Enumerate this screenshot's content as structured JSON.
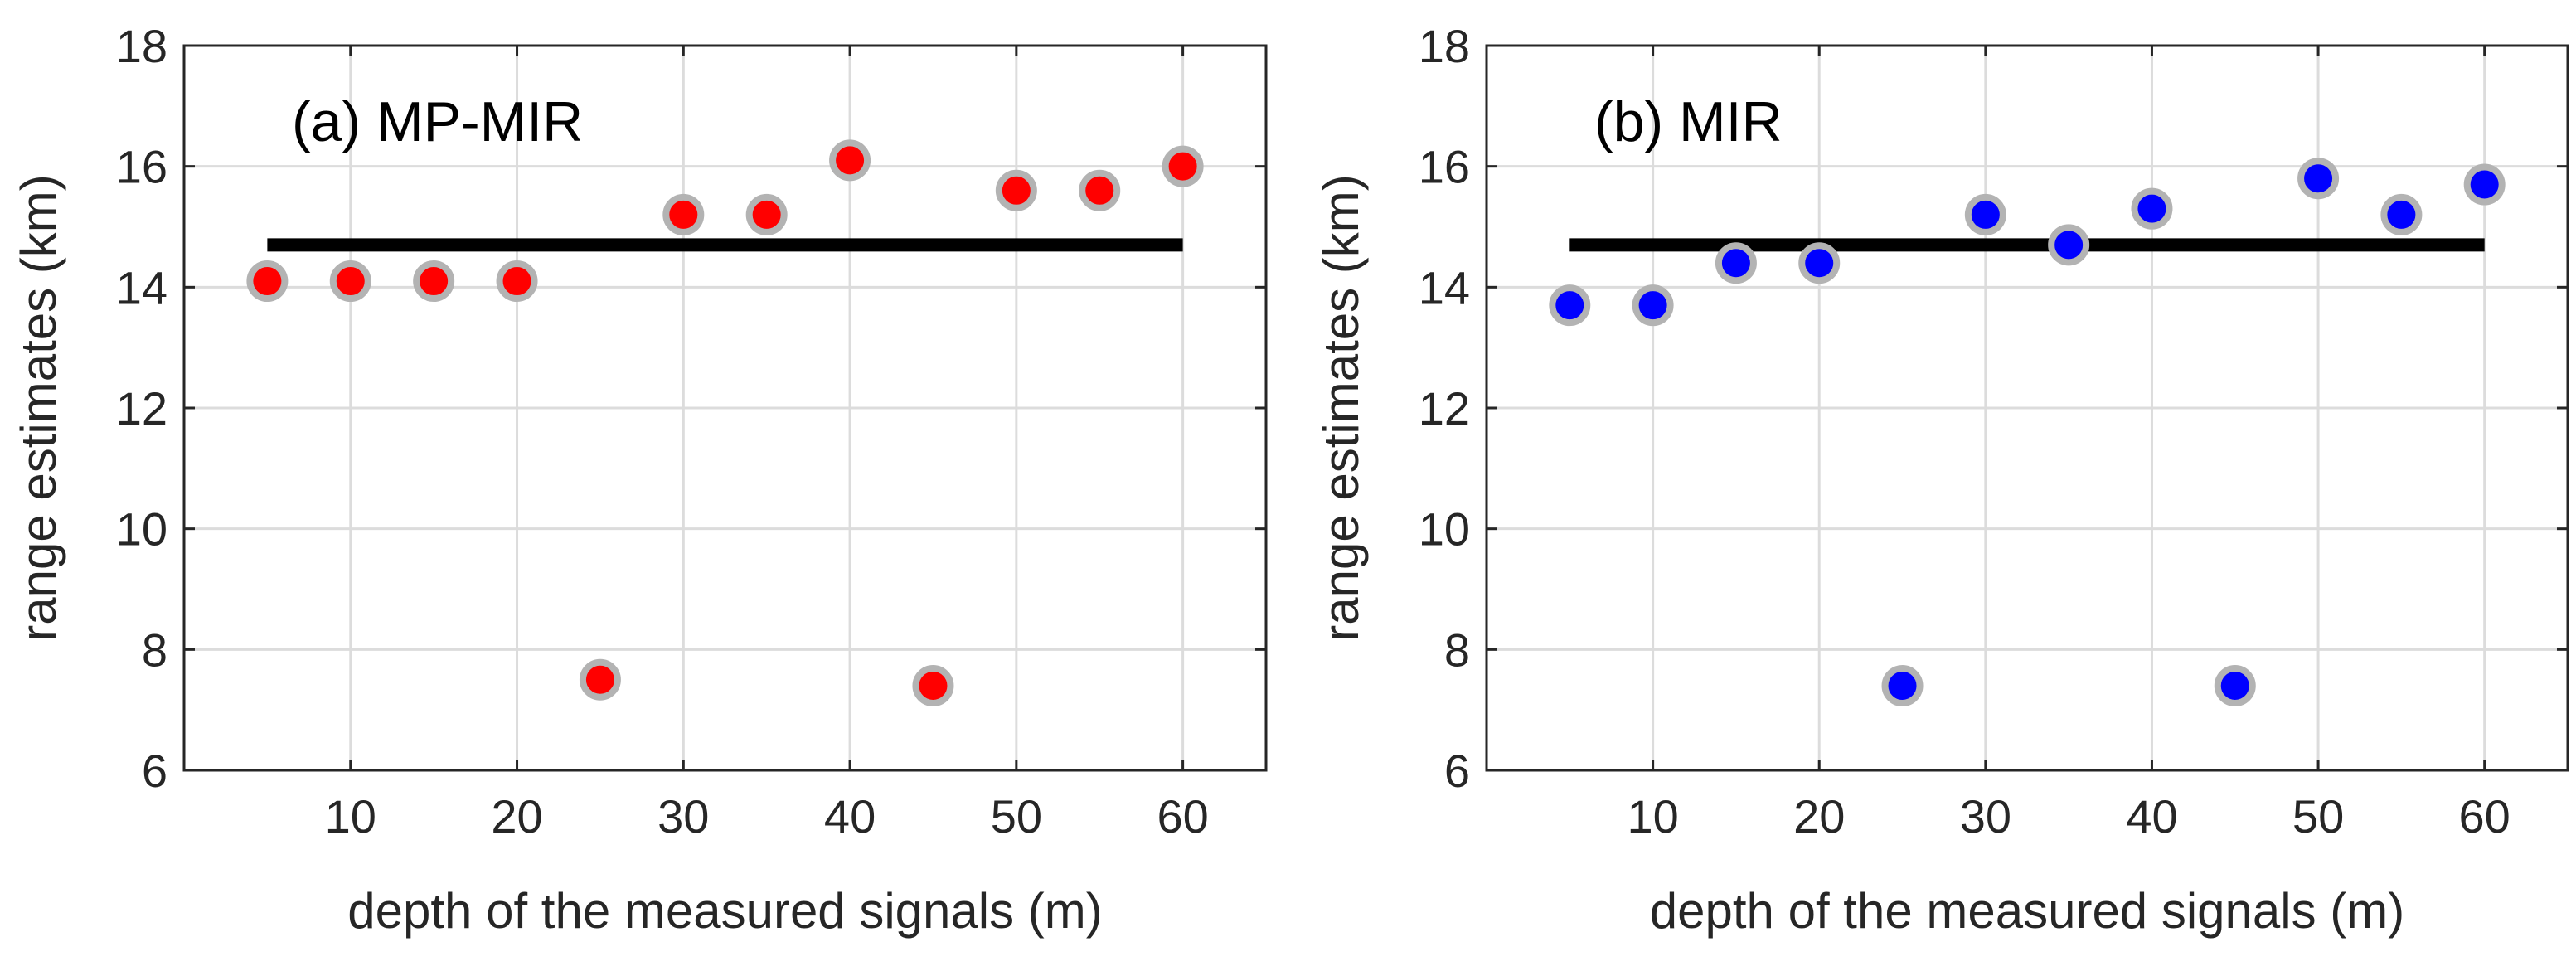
{
  "chart_data": [
    {
      "type": "scatter",
      "title": "(a) MP-MIR",
      "xlabel": "depth of the measured signals (m)",
      "ylabel": "range estimates (km)",
      "xlim": [
        0,
        65
      ],
      "ylim": [
        6,
        18
      ],
      "xticks": [
        "10",
        "20",
        "30",
        "40",
        "50",
        "60"
      ],
      "yticks": [
        "6",
        "8",
        "10",
        "12",
        "14",
        "16",
        "18"
      ],
      "grid": true,
      "marker_color": "#ff0000",
      "marker_edge": "#b3b3b3",
      "reference_line": {
        "y": 14.7,
        "x": [
          5,
          60
        ],
        "color": "#000000"
      },
      "x": [
        5,
        10,
        15,
        20,
        25,
        30,
        35,
        40,
        45,
        50,
        55,
        60
      ],
      "y": [
        14.1,
        14.1,
        14.1,
        14.1,
        7.5,
        15.2,
        15.2,
        16.1,
        7.4,
        15.6,
        15.6,
        16.0
      ]
    },
    {
      "type": "scatter",
      "title": "(b) MIR",
      "xlabel": "depth of the measured signals (m)",
      "ylabel": "range estimates (km)",
      "xlim": [
        0,
        65
      ],
      "ylim": [
        6,
        18
      ],
      "xticks": [
        "10",
        "20",
        "30",
        "40",
        "50",
        "60"
      ],
      "yticks": [
        "6",
        "8",
        "10",
        "12",
        "14",
        "16",
        "18"
      ],
      "grid": true,
      "marker_color": "#0000ff",
      "marker_edge": "#b3b3b3",
      "reference_line": {
        "y": 14.7,
        "x": [
          5,
          60
        ],
        "color": "#000000"
      },
      "x": [
        5,
        10,
        15,
        20,
        25,
        30,
        35,
        40,
        45,
        50,
        55,
        60
      ],
      "y": [
        13.7,
        13.7,
        14.4,
        14.4,
        7.4,
        15.2,
        14.7,
        15.3,
        7.4,
        15.8,
        15.2,
        15.7
      ]
    }
  ]
}
